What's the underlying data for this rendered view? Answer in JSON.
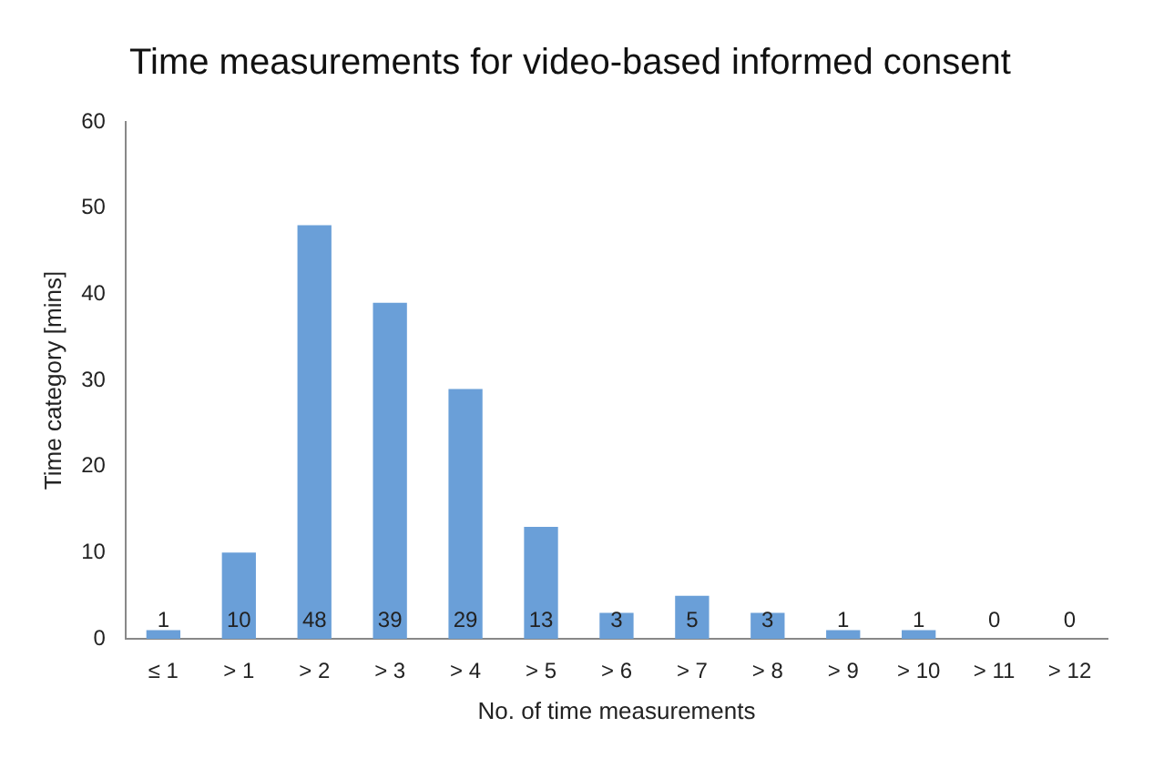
{
  "chart_data": {
    "type": "bar",
    "title": "Time measurements for video-based informed consent",
    "xlabel": "No. of time measurements",
    "ylabel": "Time category [mins]",
    "categories": [
      "≤ 1",
      "> 1",
      "> 2",
      "> 3",
      "> 4",
      "> 5",
      "> 6",
      "> 7",
      "> 8",
      "> 9",
      "> 10",
      "> 11",
      "> 12"
    ],
    "values": [
      1,
      10,
      48,
      39,
      29,
      13,
      3,
      5,
      3,
      1,
      1,
      0,
      0
    ],
    "color": "#6a9fd8",
    "ylim": [
      0,
      60
    ],
    "yticks": [
      0,
      10,
      20,
      30,
      40,
      50,
      60
    ],
    "grid": false,
    "legend": false,
    "data_labels": true
  }
}
